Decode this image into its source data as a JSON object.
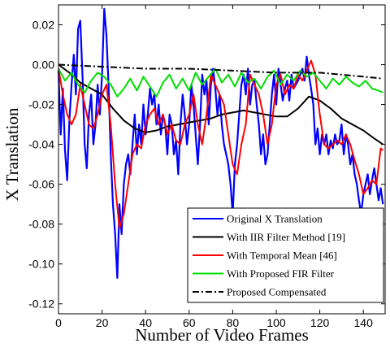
{
  "chart_data": {
    "type": "line",
    "title": "",
    "xlabel": "Number of Video Frames",
    "ylabel": "X Translation",
    "xlim": [
      0,
      150
    ],
    "ylim": [
      -0.125,
      0.03
    ],
    "xticks": [
      0,
      20,
      40,
      60,
      80,
      100,
      120,
      140
    ],
    "yticks": [
      0.02,
      0.0,
      -0.02,
      -0.04,
      -0.06,
      -0.08,
      -0.1,
      -0.12
    ],
    "ytick_labels": [
      "0.02",
      "0.00",
      "-0.02",
      "-0.04",
      "-0.06",
      "-0.08",
      "-0.10",
      "-0.12"
    ],
    "grid": false,
    "legend_position": "bottom-right",
    "series": [
      {
        "name": "Original X Translation",
        "color": "#0000ff",
        "x": [
          0,
          1,
          2,
          3,
          4,
          5,
          6,
          7,
          8,
          9,
          10,
          11,
          12,
          13,
          14,
          15,
          16,
          17,
          18,
          19,
          20,
          21,
          22,
          23,
          24,
          25,
          26,
          27,
          28,
          29,
          30,
          31,
          32,
          33,
          34,
          35,
          36,
          37,
          38,
          39,
          40,
          41,
          42,
          43,
          44,
          45,
          46,
          47,
          48,
          49,
          50,
          51,
          52,
          53,
          54,
          55,
          56,
          57,
          58,
          59,
          60,
          61,
          62,
          63,
          64,
          65,
          66,
          67,
          68,
          69,
          70,
          71,
          72,
          73,
          74,
          75,
          76,
          77,
          78,
          79,
          80,
          81,
          82,
          83,
          84,
          85,
          86,
          87,
          88,
          89,
          90,
          91,
          92,
          93,
          94,
          95,
          96,
          97,
          98,
          99,
          100,
          101,
          102,
          103,
          104,
          105,
          106,
          107,
          108,
          109,
          110,
          111,
          112,
          113,
          114,
          115,
          116,
          117,
          118,
          119,
          120,
          121,
          122,
          123,
          124,
          125,
          126,
          127,
          128,
          129,
          130,
          131,
          132,
          133,
          134,
          135,
          136,
          137,
          138,
          139,
          140,
          141,
          142,
          143,
          144,
          145,
          146,
          147,
          148,
          149
        ],
        "y": [
          -0.003,
          -0.035,
          -0.012,
          -0.043,
          -0.058,
          -0.028,
          -0.01,
          0.005,
          -0.015,
          0.018,
          0.022,
          -0.005,
          -0.04,
          -0.052,
          -0.025,
          -0.015,
          -0.04,
          -0.03,
          -0.01,
          -0.025,
          -0.005,
          0.028,
          0.015,
          -0.01,
          -0.045,
          -0.07,
          -0.085,
          -0.107,
          -0.07,
          -0.085,
          -0.06,
          -0.05,
          -0.045,
          -0.055,
          -0.04,
          -0.025,
          -0.045,
          -0.03,
          -0.04,
          -0.02,
          -0.035,
          -0.025,
          -0.012,
          -0.02,
          -0.015,
          -0.03,
          -0.02,
          -0.035,
          -0.025,
          -0.03,
          -0.045,
          -0.025,
          -0.03,
          -0.045,
          -0.038,
          -0.055,
          -0.03,
          -0.015,
          -0.025,
          -0.04,
          -0.03,
          -0.01,
          -0.02,
          -0.035,
          -0.05,
          -0.03,
          -0.005,
          -0.015,
          -0.008,
          -0.03,
          -0.01,
          -0.002,
          -0.012,
          -0.025,
          -0.015,
          -0.03,
          -0.04,
          -0.045,
          -0.05,
          -0.06,
          -0.075,
          -0.05,
          -0.04,
          -0.025,
          -0.01,
          -0.005,
          -0.015,
          -0.002,
          -0.02,
          -0.01,
          -0.008,
          -0.02,
          -0.03,
          -0.045,
          -0.035,
          -0.05,
          -0.045,
          -0.03,
          -0.015,
          -0.005,
          -0.02,
          -0.002,
          -0.01,
          -0.018,
          -0.012,
          -0.008,
          -0.018,
          -0.005,
          -0.012,
          -0.01,
          -0.008,
          -0.005,
          -0.002,
          -0.008,
          0.004,
          -0.005,
          -0.012,
          -0.02,
          -0.04,
          -0.032,
          -0.045,
          -0.035,
          -0.04,
          -0.035,
          -0.045,
          -0.038,
          -0.042,
          -0.035,
          -0.04,
          -0.038,
          -0.03,
          -0.045,
          -0.035,
          -0.04,
          -0.05,
          -0.045,
          -0.055,
          -0.06,
          -0.068,
          -0.075,
          -0.065,
          -0.06,
          -0.055,
          -0.065,
          -0.058,
          -0.052,
          -0.06,
          -0.068,
          -0.062,
          -0.07
        ]
      },
      {
        "name": "With IIR Filter Method [19]",
        "color": "#000000",
        "x": [
          0,
          5,
          10,
          15,
          20,
          25,
          30,
          35,
          40,
          45,
          50,
          55,
          60,
          65,
          70,
          75,
          80,
          85,
          90,
          95,
          100,
          105,
          110,
          115,
          120,
          125,
          130,
          135,
          140,
          145,
          149
        ],
        "y": [
          0.0,
          -0.004,
          -0.009,
          -0.012,
          -0.015,
          -0.022,
          -0.028,
          -0.032,
          -0.034,
          -0.033,
          -0.031,
          -0.03,
          -0.029,
          -0.028,
          -0.027,
          -0.025,
          -0.024,
          -0.023,
          -0.024,
          -0.025,
          -0.026,
          -0.026,
          -0.022,
          -0.016,
          -0.018,
          -0.022,
          -0.027,
          -0.03,
          -0.033,
          -0.037,
          -0.04
        ]
      },
      {
        "name": "With Temporal Mean [46]",
        "color": "#ff0000",
        "x": [
          0,
          2,
          4,
          6,
          8,
          10,
          12,
          14,
          16,
          18,
          20,
          22,
          24,
          26,
          28,
          30,
          32,
          34,
          36,
          38,
          40,
          42,
          44,
          46,
          48,
          50,
          52,
          54,
          56,
          58,
          60,
          62,
          64,
          66,
          68,
          70,
          72,
          74,
          76,
          78,
          80,
          82,
          84,
          86,
          88,
          90,
          92,
          94,
          96,
          98,
          100,
          102,
          104,
          106,
          108,
          110,
          112,
          114,
          116,
          118,
          120,
          122,
          124,
          126,
          128,
          130,
          132,
          134,
          136,
          138,
          140,
          142,
          144,
          146,
          148,
          149
        ],
        "y": [
          -0.002,
          -0.015,
          -0.025,
          -0.03,
          -0.025,
          -0.01,
          -0.02,
          -0.03,
          -0.032,
          -0.025,
          -0.015,
          -0.01,
          -0.03,
          -0.06,
          -0.082,
          -0.075,
          -0.06,
          -0.045,
          -0.04,
          -0.042,
          -0.03,
          -0.025,
          -0.022,
          -0.03,
          -0.025,
          -0.035,
          -0.03,
          -0.038,
          -0.04,
          -0.03,
          -0.025,
          -0.015,
          -0.03,
          -0.04,
          -0.025,
          -0.005,
          -0.01,
          -0.015,
          -0.02,
          -0.035,
          -0.05,
          -0.055,
          -0.04,
          -0.03,
          -0.005,
          -0.01,
          -0.015,
          -0.025,
          -0.04,
          -0.03,
          -0.01,
          -0.005,
          -0.015,
          -0.01,
          -0.012,
          -0.005,
          -0.008,
          -0.003,
          0.002,
          -0.005,
          -0.025,
          -0.04,
          -0.042,
          -0.04,
          -0.038,
          -0.04,
          -0.035,
          -0.04,
          -0.048,
          -0.055,
          -0.065,
          -0.062,
          -0.058,
          -0.06,
          -0.042,
          -0.043
        ]
      },
      {
        "name": "With Proposed FIR Filter",
        "color": "#00dd00",
        "x": [
          0,
          3,
          6,
          9,
          12,
          15,
          18,
          21,
          24,
          27,
          30,
          33,
          36,
          39,
          42,
          45,
          48,
          51,
          54,
          57,
          60,
          63,
          66,
          69,
          72,
          75,
          78,
          81,
          84,
          87,
          90,
          93,
          96,
          99,
          102,
          105,
          108,
          111,
          114,
          117,
          120,
          123,
          126,
          129,
          132,
          135,
          138,
          141,
          144,
          147,
          149
        ],
        "y": [
          -0.002,
          -0.008,
          -0.004,
          -0.01,
          -0.014,
          -0.008,
          -0.004,
          -0.006,
          -0.01,
          -0.016,
          -0.012,
          -0.007,
          -0.013,
          -0.006,
          -0.011,
          -0.016,
          -0.009,
          -0.005,
          -0.012,
          -0.007,
          -0.013,
          -0.004,
          -0.01,
          -0.006,
          -0.002,
          -0.009,
          -0.005,
          -0.011,
          -0.004,
          -0.009,
          -0.007,
          -0.012,
          -0.006,
          -0.003,
          -0.01,
          -0.005,
          -0.008,
          -0.003,
          -0.006,
          -0.004,
          -0.008,
          -0.012,
          -0.007,
          -0.01,
          -0.006,
          -0.009,
          -0.011,
          -0.008,
          -0.012,
          -0.013,
          -0.014
        ]
      },
      {
        "name": "Proposed Compensated",
        "color": "#000000",
        "dash": "dashdot",
        "x": [
          0,
          20,
          40,
          60,
          80,
          100,
          120,
          140,
          149
        ],
        "y": [
          0.0,
          -0.001,
          -0.002,
          -0.002,
          -0.003,
          -0.004,
          -0.004,
          -0.006,
          -0.007
        ]
      }
    ]
  }
}
